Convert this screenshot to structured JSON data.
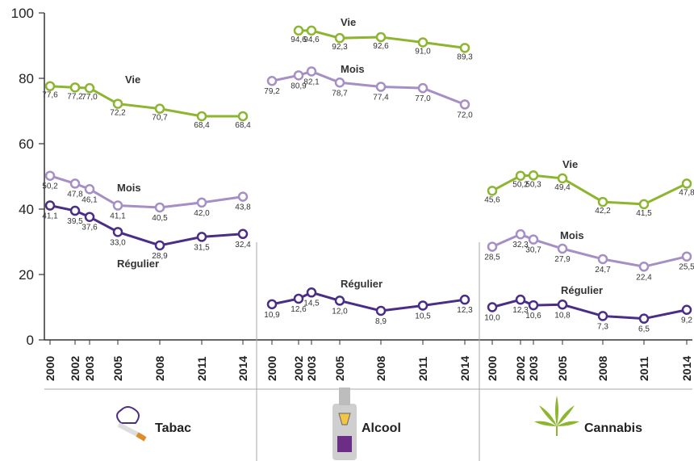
{
  "colors": {
    "vie": "#8db530",
    "mois": "#a58fc4",
    "regulier": "#4a2d86",
    "axis": "#333333",
    "divider": "#aaaaaa"
  },
  "chart_data": [
    {
      "type": "line",
      "panel": "Tabac",
      "icon": "cigarette-icon",
      "x": [
        "2000",
        "2002",
        "2003",
        "2005",
        "2008",
        "2011",
        "2014"
      ],
      "ylim": [
        0,
        100
      ],
      "yticks": [
        "0",
        "20",
        "40",
        "60",
        "80",
        "100"
      ],
      "series": [
        {
          "key": "vie",
          "name": "Vie",
          "values": [
            77.6,
            77.2,
            77.0,
            72.2,
            70.7,
            68.4,
            68.4
          ],
          "labels": [
            "77,6",
            "77,2",
            "77,0",
            "72,2",
            "70,7",
            "68,4",
            "68,4"
          ]
        },
        {
          "key": "mois",
          "name": "Mois",
          "values": [
            50.2,
            47.8,
            46.1,
            41.1,
            40.5,
            42.0,
            43.8
          ],
          "labels": [
            "50,2",
            "47,8",
            "46,1",
            "41,1",
            "40,5",
            "42,0",
            "43,8"
          ]
        },
        {
          "key": "regulier",
          "name": "Régulier",
          "values": [
            41.1,
            39.5,
            37.6,
            33.0,
            28.9,
            31.5,
            32.4
          ],
          "labels": [
            "41,1",
            "39,5",
            "37,6",
            "33,0",
            "28,9",
            "31,5",
            "32,4"
          ]
        }
      ]
    },
    {
      "type": "line",
      "panel": "Alcool",
      "icon": "bottle-glass-icon",
      "x": [
        "2000",
        "2002",
        "2003",
        "2005",
        "2008",
        "2011",
        "2014"
      ],
      "ylim": [
        0,
        100
      ],
      "series": [
        {
          "key": "vie",
          "name": "Vie",
          "values": [
            null,
            94.6,
            94.6,
            92.3,
            92.6,
            91.0,
            89.3
          ],
          "labels": [
            null,
            "94,6",
            "94,6",
            "92,3",
            "92,6",
            "91,0",
            "89,3"
          ]
        },
        {
          "key": "mois",
          "name": "Mois",
          "values": [
            79.2,
            80.9,
            82.1,
            78.7,
            77.4,
            77.0,
            72.0
          ],
          "labels": [
            "79,2",
            "80,9",
            "82,1",
            "78,7",
            "77,4",
            "77,0",
            "72,0"
          ]
        },
        {
          "key": "regulier",
          "name": "Régulier",
          "values": [
            10.9,
            12.6,
            14.5,
            12.0,
            8.9,
            10.5,
            12.3
          ],
          "labels": [
            "10,9",
            "12,6",
            "14,5",
            "12,0",
            "8,9",
            "10,5",
            "12,3"
          ]
        }
      ]
    },
    {
      "type": "line",
      "panel": "Cannabis",
      "icon": "cannabis-leaf-icon",
      "x": [
        "2000",
        "2002",
        "2003",
        "2005",
        "2008",
        "2011",
        "2014"
      ],
      "ylim": [
        0,
        100
      ],
      "series": [
        {
          "key": "vie",
          "name": "Vie",
          "values": [
            45.6,
            50.2,
            50.3,
            49.4,
            42.2,
            41.5,
            47.8
          ],
          "labels": [
            "45,6",
            "50,2",
            "50,3",
            "49,4",
            "42,2",
            "41,5",
            "47,8"
          ]
        },
        {
          "key": "mois",
          "name": "Mois",
          "values": [
            28.5,
            32.3,
            30.7,
            27.9,
            24.7,
            22.4,
            25.5
          ],
          "labels": [
            "28,5",
            "32,3",
            "30,7",
            "27,9",
            "24,7",
            "22,4",
            "25,5"
          ]
        },
        {
          "key": "regulier",
          "name": "Régulier",
          "values": [
            10.0,
            12.3,
            10.6,
            10.8,
            7.3,
            6.5,
            9.2
          ],
          "labels": [
            "10,0",
            "12,3",
            "10,6",
            "10,8",
            "7,3",
            "6,5",
            "9,2"
          ]
        }
      ]
    }
  ]
}
